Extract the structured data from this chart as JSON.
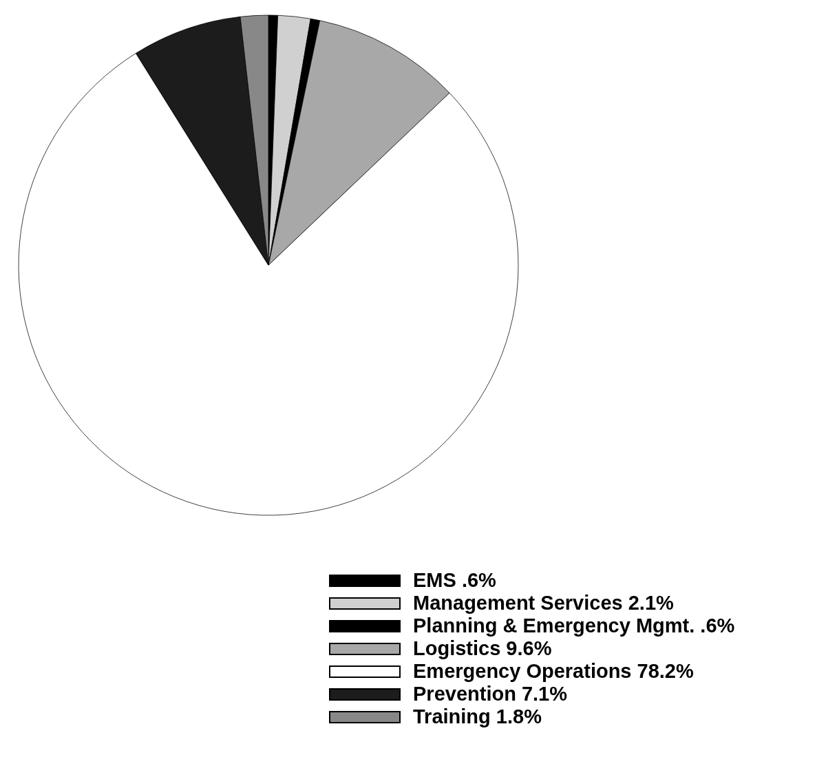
{
  "chart_data": {
    "type": "pie",
    "categories": [
      "EMS",
      "Management Services",
      "Planning & Emergency Mgmt.",
      "Logistics",
      "Emergency Operations",
      "Prevention",
      "Training"
    ],
    "values": [
      0.6,
      2.1,
      0.6,
      9.6,
      78.2,
      7.1,
      1.8
    ],
    "value_labels": [
      ".6%",
      "2.1%",
      ".6%",
      "9.6%",
      "78.2%",
      "7.1%",
      "1.8%"
    ],
    "colors": [
      "#000000",
      "#d0d0d0",
      "#000000",
      "#a8a8a8",
      "#ffffff",
      "#1c1c1c",
      "#888888"
    ],
    "legend": "bottom"
  }
}
